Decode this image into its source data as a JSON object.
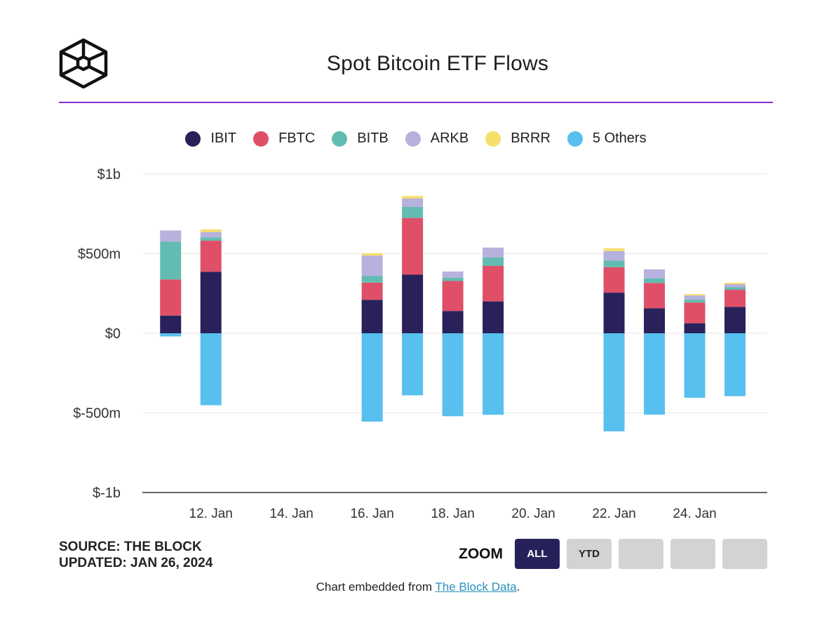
{
  "title": "Spot Bitcoin ETF Flows",
  "colors": {
    "IBIT": "#29215a",
    "FBTC": "#df4f67",
    "BITB": "#62bcb1",
    "ARKB": "#b7b1dd",
    "BRRR": "#f7df6c",
    "Others": "#58c0ee",
    "rule": "#8a2fc7"
  },
  "legend": [
    {
      "key": "IBIT",
      "label": "IBIT"
    },
    {
      "key": "FBTC",
      "label": "FBTC"
    },
    {
      "key": "BITB",
      "label": "BITB"
    },
    {
      "key": "ARKB",
      "label": "ARKB"
    },
    {
      "key": "BRRR",
      "label": "BRRR"
    },
    {
      "key": "Others",
      "label": "5 Others"
    }
  ],
  "chart_data": {
    "type": "bar",
    "stacked": true,
    "title": "Spot Bitcoin ETF Flows",
    "units": "USD millions",
    "ylim": [
      -1000,
      1000
    ],
    "y_ticks": [
      1000,
      500,
      0,
      -500,
      -1000
    ],
    "y_tick_labels": [
      "$1b",
      "$500m",
      "$0",
      "$-500m",
      "$-1b"
    ],
    "x_tick_labels": [
      "12. Jan",
      "14. Jan",
      "16. Jan",
      "18. Jan",
      "20. Jan",
      "22. Jan",
      "24. Jan"
    ],
    "x_tick_days": [
      12,
      14,
      16,
      18,
      20,
      22,
      24
    ],
    "x_range_days": [
      10.3,
      25.8
    ],
    "grid": true,
    "legend_position": "top",
    "days": [
      11,
      12,
      16,
      17,
      18,
      19,
      22,
      23,
      24,
      25
    ],
    "categories": [
      "11. Jan",
      "12. Jan",
      "16. Jan",
      "17. Jan",
      "18. Jan",
      "19. Jan",
      "22. Jan",
      "23. Jan",
      "24. Jan",
      "25. Jan"
    ],
    "series": [
      {
        "name": "IBIT",
        "values": [
          111,
          386,
          210,
          368,
          140,
          200,
          255,
          157,
          63,
          166
        ]
      },
      {
        "name": "FBTC",
        "values": [
          227,
          195,
          108,
          356,
          188,
          223,
          160,
          159,
          130,
          107
        ]
      },
      {
        "name": "BITB",
        "values": [
          237,
          20,
          43,
          69,
          20,
          54,
          41,
          29,
          18,
          17
        ]
      },
      {
        "name": "ARKB",
        "values": [
          70,
          35,
          127,
          53,
          40,
          61,
          60,
          56,
          26,
          18
        ]
      },
      {
        "name": "BRRR",
        "values": [
          0,
          16,
          15,
          16,
          0,
          0,
          17,
          0,
          9,
          9
        ]
      },
      {
        "name": "5 Others",
        "values": [
          -20,
          -452,
          -555,
          -390,
          -521,
          -512,
          -616,
          -511,
          -405,
          -395
        ]
      }
    ]
  },
  "source": {
    "line1": "SOURCE: THE BLOCK",
    "line2": "UPDATED: JAN 26, 2024"
  },
  "zoom": {
    "label": "ZOOM",
    "buttons": [
      "ALL",
      "YTD"
    ]
  },
  "embed": {
    "prefix": "Chart embedded from ",
    "link_text": "The Block Data",
    "suffix": "."
  }
}
